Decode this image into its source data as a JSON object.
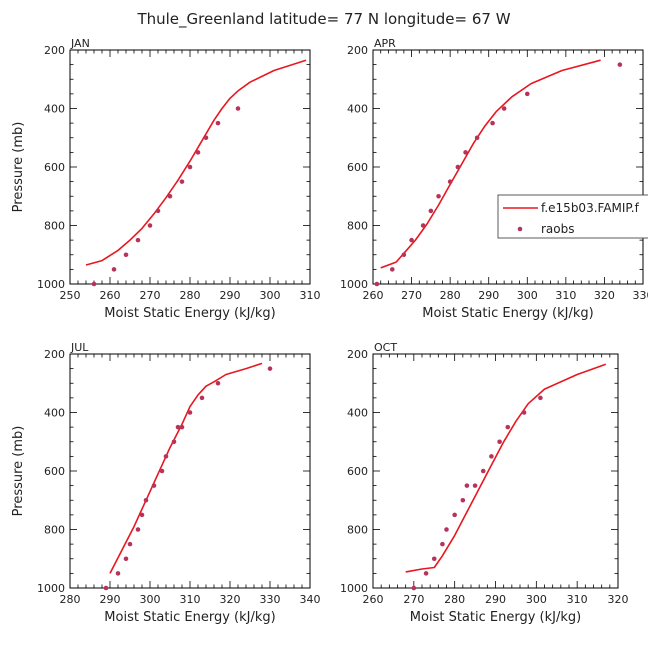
{
  "figure": {
    "title": "Thule_Greenland   latitude= 77 N longitude= 67 W"
  },
  "colors": {
    "model": "#e8171f",
    "obs": "#b8335a",
    "axis": "#000000"
  },
  "legend": {
    "model_label": "f.e15b03.FAMIP.f",
    "obs_label": "raobs"
  },
  "chart_data": [
    {
      "type": "line",
      "panel_label": "JAN",
      "xlabel": "Moist Static Energy (kJ/kg)",
      "ylabel": "Pressure (mb)",
      "xlim": [
        250,
        310
      ],
      "ylim": [
        1000,
        200
      ],
      "xticks": [
        250,
        260,
        270,
        280,
        290,
        300,
        310
      ],
      "yticks": [
        200,
        400,
        600,
        800,
        1000
      ],
      "series": [
        {
          "kind": "line",
          "x": [
            254,
            258,
            262,
            265,
            268,
            271,
            274,
            277,
            280,
            283,
            286,
            288,
            290,
            292,
            295,
            301,
            309
          ],
          "y": [
            935,
            920,
            885,
            850,
            810,
            760,
            705,
            645,
            580,
            510,
            440,
            400,
            365,
            340,
            310,
            270,
            235
          ]
        },
        {
          "kind": "scatter",
          "x": [
            256,
            261,
            264,
            267,
            270,
            272,
            275,
            278,
            280,
            282,
            284,
            287,
            292
          ],
          "y": [
            1000,
            950,
            900,
            850,
            800,
            750,
            700,
            650,
            600,
            550,
            500,
            450,
            400
          ]
        }
      ]
    },
    {
      "type": "line",
      "panel_label": "APR",
      "xlabel": "Moist Static Energy (kJ/kg)",
      "ylabel": "",
      "xlim": [
        260,
        330
      ],
      "ylim": [
        1000,
        200
      ],
      "xticks": [
        260,
        270,
        280,
        290,
        300,
        310,
        320,
        330
      ],
      "yticks": [
        200,
        400,
        600,
        800,
        1000
      ],
      "series": [
        {
          "kind": "line",
          "x": [
            262,
            266,
            268,
            271,
            274,
            277,
            280,
            283,
            286,
            289,
            292,
            296,
            301,
            309,
            319
          ],
          "y": [
            945,
            925,
            895,
            850,
            795,
            730,
            660,
            590,
            520,
            460,
            410,
            360,
            315,
            270,
            235
          ]
        },
        {
          "kind": "scatter",
          "x": [
            261,
            265,
            268,
            270,
            273,
            275,
            277,
            280,
            282,
            284,
            287,
            291,
            294,
            300,
            324
          ],
          "y": [
            1000,
            950,
            900,
            850,
            800,
            750,
            700,
            650,
            600,
            550,
            500,
            450,
            400,
            350,
            250
          ]
        }
      ]
    },
    {
      "type": "line",
      "panel_label": "JUL",
      "xlabel": "Moist Static Energy (kJ/kg)",
      "ylabel": "Pressure (mb)",
      "xlim": [
        280,
        340
      ],
      "ylim": [
        1000,
        200
      ],
      "xticks": [
        280,
        290,
        300,
        310,
        320,
        330,
        340
      ],
      "yticks": [
        200,
        400,
        600,
        800,
        1000
      ],
      "series": [
        {
          "kind": "line",
          "x": [
            290,
            293,
            296,
            299,
            302,
            305,
            308,
            310,
            312,
            314,
            316,
            319,
            324,
            328
          ],
          "y": [
            950,
            870,
            790,
            700,
            610,
            520,
            440,
            380,
            340,
            310,
            295,
            270,
            250,
            232
          ]
        },
        {
          "kind": "scatter",
          "x": [
            289,
            292,
            294,
            295,
            297,
            298,
            299,
            301,
            303,
            304,
            306,
            307,
            308,
            310,
            313,
            317,
            330
          ],
          "y": [
            1000,
            950,
            900,
            850,
            800,
            750,
            700,
            650,
            600,
            550,
            500,
            450,
            450,
            400,
            350,
            300,
            250
          ]
        }
      ]
    },
    {
      "type": "line",
      "panel_label": "OCT",
      "xlabel": "Moist Static Energy (kJ/kg)",
      "ylabel": "",
      "xlim": [
        260,
        320
      ],
      "ylim": [
        1000,
        200
      ],
      "xticks": [
        260,
        270,
        280,
        290,
        300,
        310,
        320
      ],
      "yticks": [
        200,
        400,
        600,
        800,
        1000
      ],
      "series": [
        {
          "kind": "line",
          "x": [
            268,
            272,
            275,
            277,
            280,
            283,
            286,
            289,
            292,
            295,
            298,
            302,
            310,
            317
          ],
          "y": [
            945,
            935,
            930,
            890,
            820,
            740,
            660,
            580,
            500,
            430,
            370,
            320,
            270,
            235
          ]
        },
        {
          "kind": "scatter",
          "x": [
            270,
            273,
            275,
            277,
            278,
            280,
            282,
            283,
            285,
            287,
            289,
            291,
            293,
            297,
            301
          ],
          "y": [
            1000,
            950,
            900,
            850,
            800,
            750,
            700,
            650,
            650,
            600,
            550,
            500,
            450,
            400,
            350
          ]
        }
      ]
    }
  ]
}
